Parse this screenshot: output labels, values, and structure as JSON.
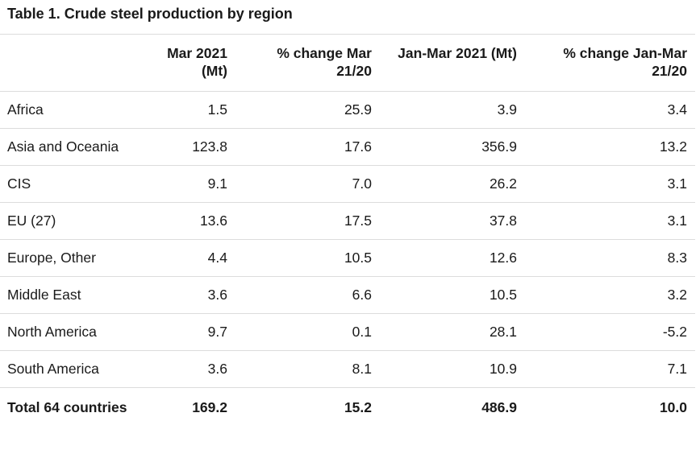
{
  "title": "Table 1. Crude steel production by region",
  "table": {
    "headers": {
      "region": "",
      "mar2021": "Mar 2021 (Mt)",
      "pct_mar": "% change Mar 21/20",
      "janmar2021": "Jan-Mar 2021 (Mt)",
      "pct_janmar": "% change Jan-Mar 21/20"
    },
    "rows": [
      {
        "region": "Africa",
        "mar2021": "1.5",
        "pct_mar": "25.9",
        "janmar2021": "3.9",
        "pct_janmar": "3.4"
      },
      {
        "region": "Asia and Oceania",
        "mar2021": "123.8",
        "pct_mar": "17.6",
        "janmar2021": "356.9",
        "pct_janmar": "13.2"
      },
      {
        "region": "CIS",
        "mar2021": "9.1",
        "pct_mar": "7.0",
        "janmar2021": "26.2",
        "pct_janmar": "3.1"
      },
      {
        "region": "EU (27)",
        "mar2021": "13.6",
        "pct_mar": "17.5",
        "janmar2021": "37.8",
        "pct_janmar": "3.1"
      },
      {
        "region": "Europe, Other",
        "mar2021": "4.4",
        "pct_mar": "10.5",
        "janmar2021": "12.6",
        "pct_janmar": "8.3"
      },
      {
        "region": "Middle East",
        "mar2021": "3.6",
        "pct_mar": "6.6",
        "janmar2021": "10.5",
        "pct_janmar": "3.2"
      },
      {
        "region": "North America",
        "mar2021": "9.7",
        "pct_mar": "0.1",
        "janmar2021": "28.1",
        "pct_janmar": "-5.2"
      },
      {
        "region": "South America",
        "mar2021": "3.6",
        "pct_mar": "8.1",
        "janmar2021": "10.9",
        "pct_janmar": "7.1"
      }
    ],
    "total": {
      "region": "Total 64 countries",
      "mar2021": "169.2",
      "pct_mar": "15.2",
      "janmar2021": "486.9",
      "pct_janmar": "10.0"
    }
  }
}
